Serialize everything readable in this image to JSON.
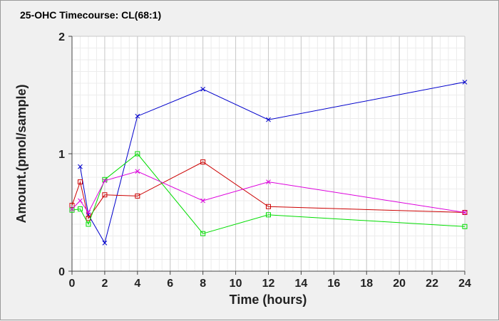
{
  "chart_data": {
    "type": "line",
    "title": "25-OHC Timecourse: CL(68:1)",
    "xlabel": "Time (hours)",
    "ylabel": "Amount.(pmol/sample)",
    "xlim": [
      0,
      24
    ],
    "ylim": [
      0,
      2
    ],
    "x_ticks": [
      0,
      2,
      4,
      6,
      8,
      10,
      12,
      14,
      16,
      18,
      20,
      22,
      24
    ],
    "y_ticks": [
      0,
      1,
      2
    ],
    "grid": true,
    "series": [
      {
        "color": "#0000cc",
        "marker": "x",
        "points": [
          [
            0.5,
            0.89
          ],
          [
            1,
            0.48
          ],
          [
            2,
            0.24
          ],
          [
            4,
            1.32
          ],
          [
            8,
            1.55
          ],
          [
            12,
            1.29
          ],
          [
            24,
            1.61
          ]
        ]
      },
      {
        "color": "#cc0000",
        "marker": "square",
        "points": [
          [
            0,
            0.56
          ],
          [
            0.5,
            0.76
          ],
          [
            1,
            0.45
          ],
          [
            2,
            0.65
          ],
          [
            4,
            0.64
          ],
          [
            8,
            0.93
          ],
          [
            12,
            0.55
          ],
          [
            24,
            0.5
          ]
        ]
      },
      {
        "color": "#00dd00",
        "marker": "square",
        "points": [
          [
            0,
            0.52
          ],
          [
            0.5,
            0.53
          ],
          [
            1,
            0.4
          ],
          [
            2,
            0.78
          ],
          [
            4,
            1.0
          ],
          [
            8,
            0.32
          ],
          [
            12,
            0.48
          ],
          [
            24,
            0.38
          ]
        ]
      },
      {
        "color": "#dd00dd",
        "marker": "x",
        "points": [
          [
            0,
            0.53
          ],
          [
            0.5,
            0.6
          ],
          [
            1,
            0.5
          ],
          [
            2,
            0.77
          ],
          [
            4,
            0.85
          ],
          [
            8,
            0.6
          ],
          [
            12,
            0.76
          ],
          [
            24,
            0.5
          ]
        ]
      }
    ]
  }
}
